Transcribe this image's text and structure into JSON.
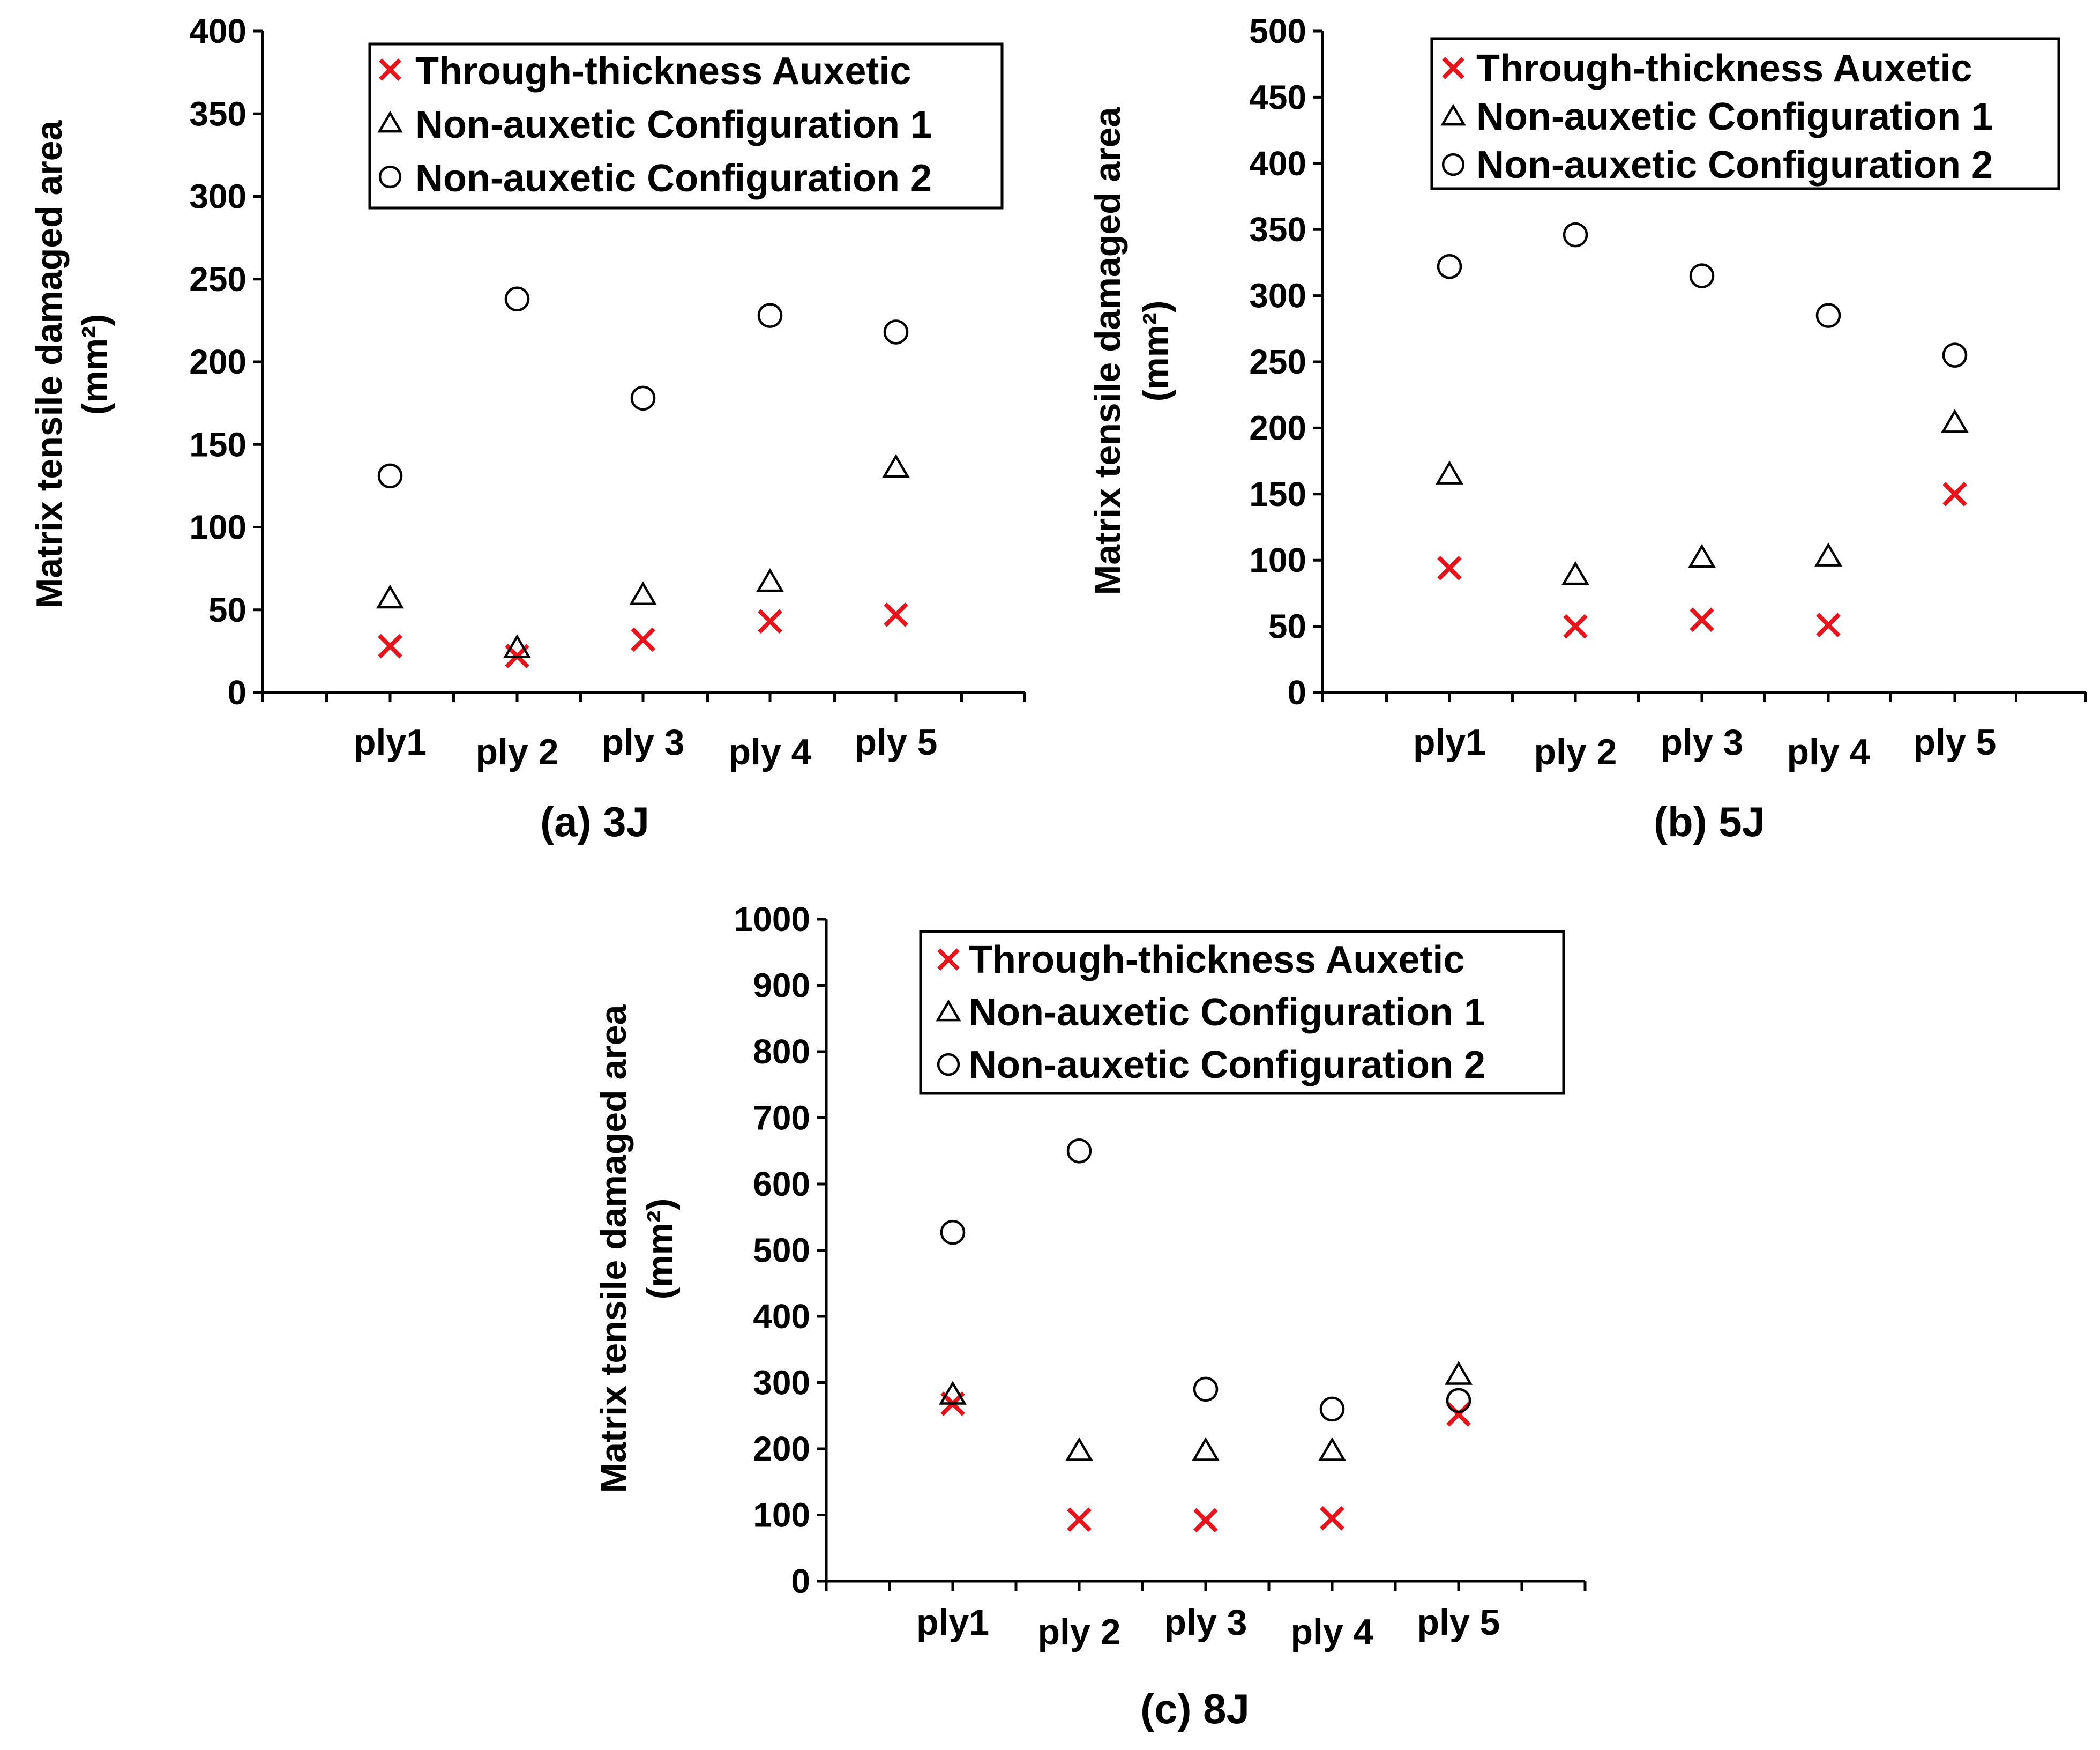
{
  "colors": {
    "auxetic": "#e8141b",
    "config1": "#000000",
    "config2": "#000000"
  },
  "chart_data": [
    {
      "type": "scatter",
      "caption": "(a) 3J",
      "ylabel_line1": "Matrix tensile damaged area",
      "ylabel_line2": "(mm²)",
      "categories": [
        "ply1",
        "ply 2",
        "ply 3",
        "ply 4",
        "ply 5"
      ],
      "ylim": [
        0,
        400
      ],
      "yticks": [
        0,
        50,
        100,
        150,
        200,
        250,
        300,
        350,
        400
      ],
      "legend_position": "top-right",
      "series": [
        {
          "name": "Through-thickness Auxetic",
          "marker": "x",
          "values": [
            28,
            22,
            32,
            43,
            47
          ]
        },
        {
          "name": "Non-auxetic Configuration 1",
          "marker": "triangle",
          "values": [
            57,
            27,
            59,
            67,
            136
          ]
        },
        {
          "name": "Non-auxetic Configuration 2",
          "marker": "circle",
          "values": [
            131,
            238,
            178,
            228,
            218
          ]
        }
      ]
    },
    {
      "type": "scatter",
      "caption": "(b) 5J",
      "ylabel_line1": "Matrix tensile damaged area",
      "ylabel_line2": "(mm²)",
      "categories": [
        "ply1",
        "ply 2",
        "ply 3",
        "ply 4",
        "ply 5"
      ],
      "ylim": [
        0,
        500
      ],
      "yticks": [
        0,
        50,
        100,
        150,
        200,
        250,
        300,
        350,
        400,
        450,
        500
      ],
      "legend_position": "top-right",
      "series": [
        {
          "name": "Through-thickness Auxetic",
          "marker": "x",
          "values": [
            94,
            50,
            55,
            51,
            150
          ]
        },
        {
          "name": "Non-auxetic Configuration 1",
          "marker": "triangle",
          "values": [
            165,
            89,
            102,
            103,
            204
          ]
        },
        {
          "name": "Non-auxetic Configuration 2",
          "marker": "circle",
          "values": [
            322,
            346,
            315,
            285,
            255
          ]
        }
      ]
    },
    {
      "type": "scatter",
      "caption": "(c) 8J",
      "ylabel_line1": "Matrix tensile damaged area",
      "ylabel_line2": "(mm²)",
      "categories": [
        "ply1",
        "ply 2",
        "ply 3",
        "ply 4",
        "ply 5"
      ],
      "ylim": [
        0,
        1000
      ],
      "yticks": [
        0,
        100,
        200,
        300,
        400,
        500,
        600,
        700,
        800,
        900,
        1000
      ],
      "legend_position": "top-right",
      "series": [
        {
          "name": "Through-thickness Auxetic",
          "marker": "x",
          "values": [
            268,
            93,
            92,
            95,
            252
          ]
        },
        {
          "name": "Non-auxetic Configuration 1",
          "marker": "triangle",
          "values": [
            282,
            197,
            197,
            197,
            312
          ]
        },
        {
          "name": "Non-auxetic Configuration 2",
          "marker": "circle",
          "values": [
            527,
            650,
            290,
            260,
            273
          ]
        }
      ]
    }
  ]
}
